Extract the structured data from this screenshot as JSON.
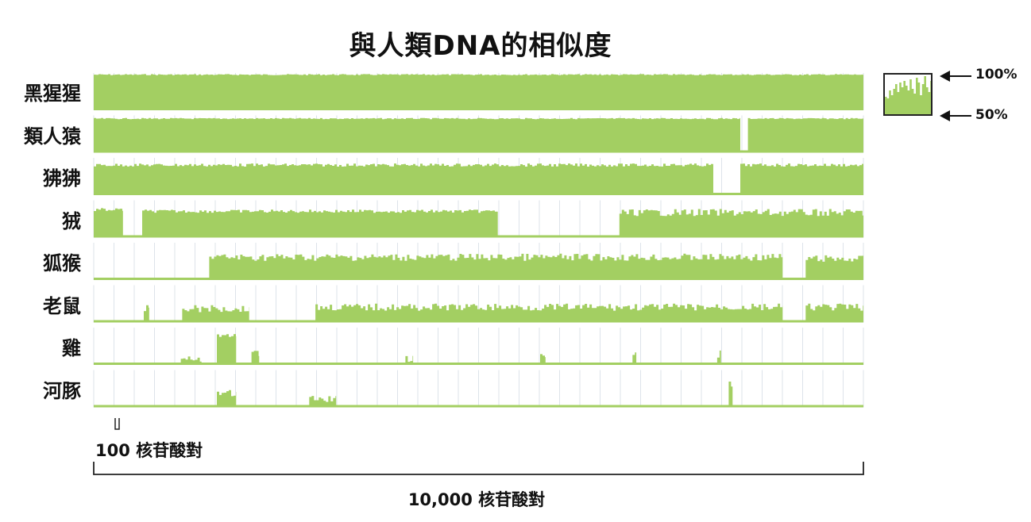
{
  "title": "與人類DNA的相似度",
  "legend": {
    "top_label": "100%",
    "bottom_label": "50%",
    "fill_color": "#a3cf62"
  },
  "scale": {
    "small_label": "100 核苷酸對",
    "big_label": "10,000 核苷酸對"
  },
  "chart_data": {
    "type": "area",
    "title": "與人類DNA的相似度",
    "xlabel": "10,000 核苷酸對",
    "ylabel": "",
    "x_range_bp": [
      0,
      10000
    ],
    "y_range_percent": [
      50,
      100
    ],
    "color": "#a3cf62",
    "series": [
      {
        "name": "黑猩猩",
        "segments": [
          [
            0,
            10000,
            98
          ]
        ]
      },
      {
        "name": "類人猿",
        "segments": [
          [
            0,
            8400,
            96
          ],
          [
            8500,
            10000,
            96
          ]
        ]
      },
      {
        "name": "狒狒",
        "segments": [
          [
            0,
            8050,
            91
          ],
          [
            8400,
            10000,
            91
          ]
        ]
      },
      {
        "name": "狨",
        "segments": [
          [
            0,
            380,
            88
          ],
          [
            630,
            5250,
            86
          ],
          [
            6830,
            10000,
            85
          ]
        ]
      },
      {
        "name": "狐猴",
        "segments": [
          [
            1500,
            8950,
            82
          ],
          [
            9250,
            10000,
            80
          ]
        ]
      },
      {
        "name": "老鼠",
        "segments": [
          [
            650,
            720,
            70
          ],
          [
            1150,
            2020,
            70
          ],
          [
            2880,
            8950,
            72
          ],
          [
            9250,
            10000,
            72
          ]
        ]
      },
      {
        "name": "雞",
        "segments": [
          [
            1100,
            1400,
            58
          ],
          [
            1600,
            1850,
            90
          ],
          [
            2050,
            2150,
            68
          ],
          [
            4050,
            4150,
            60
          ],
          [
            5800,
            5870,
            63
          ],
          [
            7000,
            7050,
            64
          ],
          [
            8100,
            8150,
            66
          ]
        ]
      },
      {
        "name": "河豚",
        "segments": [
          [
            1600,
            1850,
            70
          ],
          [
            2800,
            3150,
            62
          ],
          [
            8250,
            8300,
            84
          ]
        ]
      }
    ]
  }
}
